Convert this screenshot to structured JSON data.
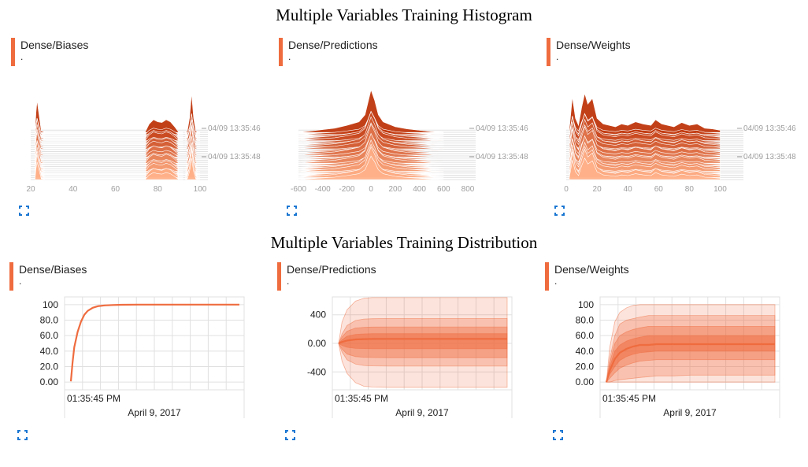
{
  "sections": [
    {
      "title": "Multiple Variables Training Histogram"
    },
    {
      "title": "Multiple Variables Training Distribution"
    }
  ],
  "colors": {
    "accent": "#ef6c3f",
    "dark": "#bf360c",
    "light": "#fbe0d2",
    "grid": "#e0e0e0",
    "tick": "#9e9e9e"
  },
  "icons": {
    "expand": "expand-icon"
  },
  "chart_data": [
    {
      "type": "area",
      "kind": "histogram",
      "title": "Dense/Biases",
      "subtitle": ".",
      "xlim": [
        20,
        100
      ],
      "xticks": [
        20,
        40,
        60,
        80,
        100
      ],
      "step_labels": [
        "04/09 13:35:46",
        "04/09 13:35:48"
      ],
      "series": [
        {
          "x": [
            22,
            22.5,
            23,
            25,
            27,
            30,
            35,
            40,
            45,
            50,
            55,
            60,
            65,
            70,
            74,
            76,
            78,
            80,
            82,
            84,
            86,
            88,
            90,
            92
          ],
          "values": [
            0,
            28,
            45,
            2,
            0,
            0,
            0,
            0,
            0,
            0,
            0,
            0,
            0,
            0,
            0,
            12,
            18,
            15,
            14,
            18,
            15,
            8,
            0,
            0
          ]
        },
        {
          "x": [
            93,
            94,
            95,
            96,
            97,
            98,
            99,
            100
          ],
          "values": [
            0,
            2,
            20,
            55,
            20,
            2,
            0,
            0
          ]
        }
      ]
    },
    {
      "type": "area",
      "kind": "histogram",
      "title": "Dense/Predictions",
      "subtitle": ".",
      "xlim": [
        -600,
        800
      ],
      "xticks": [
        -600,
        -400,
        -200,
        0,
        200,
        400,
        600,
        800
      ],
      "step_labels": [
        "04/09 13:35:46",
        "04/09 13:35:48"
      ],
      "series": [
        {
          "x": [
            -600,
            -500,
            -400,
            -300,
            -200,
            -100,
            -50,
            0,
            30,
            60,
            100,
            200,
            300,
            400,
            500,
            600
          ],
          "values": [
            0,
            2,
            4,
            6,
            10,
            15,
            25,
            60,
            45,
            25,
            15,
            8,
            5,
            3,
            1,
            0
          ]
        }
      ]
    },
    {
      "type": "area",
      "kind": "histogram",
      "title": "Dense/Weights",
      "subtitle": ".",
      "xlim": [
        0,
        110
      ],
      "xticks": [
        0,
        20,
        40,
        60,
        80,
        100
      ],
      "step_labels": [
        "04/09 13:35:46",
        "04/09 13:35:48"
      ],
      "series": [
        {
          "x": [
            2,
            4,
            6,
            8,
            10,
            12,
            14,
            17,
            20,
            24,
            28,
            32,
            36,
            40,
            45,
            50,
            55,
            58,
            62,
            66,
            70,
            75,
            80,
            85,
            90,
            95,
            100
          ],
          "values": [
            5,
            50,
            20,
            10,
            35,
            55,
            40,
            48,
            20,
            12,
            10,
            8,
            12,
            10,
            15,
            12,
            10,
            18,
            12,
            10,
            8,
            14,
            10,
            12,
            6,
            5,
            3
          ]
        }
      ]
    },
    {
      "type": "area",
      "kind": "distribution",
      "title": "Dense/Biases",
      "subtitle": ".",
      "ylim": [
        -10,
        110
      ],
      "yticks": [
        "100",
        "80.0",
        "60.0",
        "40.0",
        "20.0",
        "0.00"
      ],
      "ytick_values": [
        100,
        80,
        60,
        40,
        20,
        0
      ],
      "xlabel": "April 9, 2017",
      "xtick_label": "01:35:45 PM",
      "t": [
        0,
        0.01,
        0.02,
        0.04,
        0.06,
        0.08,
        0.1,
        0.13,
        0.16,
        0.2,
        0.25,
        0.3,
        0.4,
        0.5,
        0.6,
        0.7,
        0.8,
        0.9,
        1.0
      ],
      "median": [
        1,
        25,
        45,
        65,
        78,
        87,
        92,
        96,
        98,
        99,
        99.5,
        99.8,
        100,
        100,
        100,
        100,
        100,
        100,
        100
      ],
      "bands": []
    },
    {
      "type": "area",
      "kind": "distribution",
      "title": "Dense/Predictions",
      "subtitle": ".",
      "ylim": [
        -650,
        650
      ],
      "yticks": [
        "400",
        "0.00",
        "-400"
      ],
      "ytick_values": [
        400,
        0,
        -400
      ],
      "xlabel": "April 9, 2017",
      "xtick_label": "01:35:45 PM",
      "t": [
        0,
        0.02,
        0.05,
        0.1,
        0.15,
        0.2,
        0.3,
        0.4,
        0.6,
        0.8,
        1.0
      ],
      "median": [
        0,
        20,
        40,
        55,
        60,
        62,
        63,
        63,
        63,
        63,
        63
      ],
      "bands": [
        {
          "lower": [
            0,
            -250,
            -420,
            -550,
            -600,
            -610,
            -615,
            -615,
            -615,
            -615,
            -615
          ],
          "upper": [
            0,
            300,
            470,
            590,
            630,
            640,
            640,
            640,
            640,
            640,
            640
          ]
        },
        {
          "lower": [
            0,
            -120,
            -230,
            -290,
            -310,
            -315,
            -318,
            -318,
            -318,
            -318,
            -318
          ],
          "upper": [
            0,
            130,
            250,
            320,
            340,
            345,
            348,
            348,
            348,
            348,
            348
          ]
        },
        {
          "lower": [
            0,
            -80,
            -150,
            -185,
            -195,
            -198,
            -200,
            -200,
            -200,
            -200,
            -200
          ],
          "upper": [
            0,
            90,
            170,
            215,
            225,
            228,
            230,
            230,
            230,
            230,
            230
          ]
        },
        {
          "lower": [
            0,
            -30,
            -55,
            -70,
            -73,
            -75,
            -75,
            -75,
            -75,
            -75,
            -75
          ],
          "upper": [
            0,
            50,
            100,
            125,
            132,
            135,
            136,
            136,
            136,
            136,
            136
          ]
        }
      ]
    },
    {
      "type": "area",
      "kind": "distribution",
      "title": "Dense/Weights",
      "subtitle": ".",
      "ylim": [
        -10,
        110
      ],
      "yticks": [
        "100",
        "80.0",
        "60.0",
        "40.0",
        "20.0",
        "0.00"
      ],
      "ytick_values": [
        100,
        80,
        60,
        40,
        20,
        0
      ],
      "xlabel": "April 9, 2017",
      "xtick_label": "01:35:45 PM",
      "t": [
        0,
        0.02,
        0.05,
        0.08,
        0.12,
        0.16,
        0.2,
        0.25,
        0.3,
        0.4,
        0.5,
        0.6,
        0.8,
        1.0
      ],
      "median": [
        0,
        15,
        30,
        38,
        43,
        46,
        48,
        48,
        49,
        49,
        49,
        49,
        49,
        49
      ],
      "bands": [
        {
          "lower": [
            0,
            0,
            0,
            0,
            0,
            0,
            0,
            0,
            0,
            0,
            0,
            0,
            0,
            0
          ],
          "upper": [
            0,
            45,
            78,
            90,
            96,
            99,
            100,
            100,
            100,
            100,
            100,
            100,
            100,
            100
          ]
        },
        {
          "lower": [
            0,
            0,
            2,
            3,
            4,
            5,
            6,
            7,
            8,
            8,
            9,
            9,
            9,
            9
          ],
          "upper": [
            0,
            30,
            60,
            75,
            80,
            82,
            84,
            86,
            86,
            86,
            86,
            86,
            86,
            86
          ]
        },
        {
          "lower": [
            0,
            5,
            12,
            18,
            22,
            25,
            27,
            28,
            29,
            29,
            29,
            29,
            29,
            29
          ],
          "upper": [
            0,
            25,
            50,
            60,
            65,
            68,
            70,
            72,
            72,
            72,
            72,
            72,
            72,
            72
          ]
        },
        {
          "lower": [
            0,
            10,
            20,
            28,
            33,
            36,
            38,
            39,
            40,
            40,
            40,
            40,
            40,
            40
          ],
          "upper": [
            0,
            20,
            40,
            48,
            53,
            56,
            58,
            60,
            60,
            60,
            60,
            60,
            60,
            60
          ]
        }
      ]
    }
  ]
}
